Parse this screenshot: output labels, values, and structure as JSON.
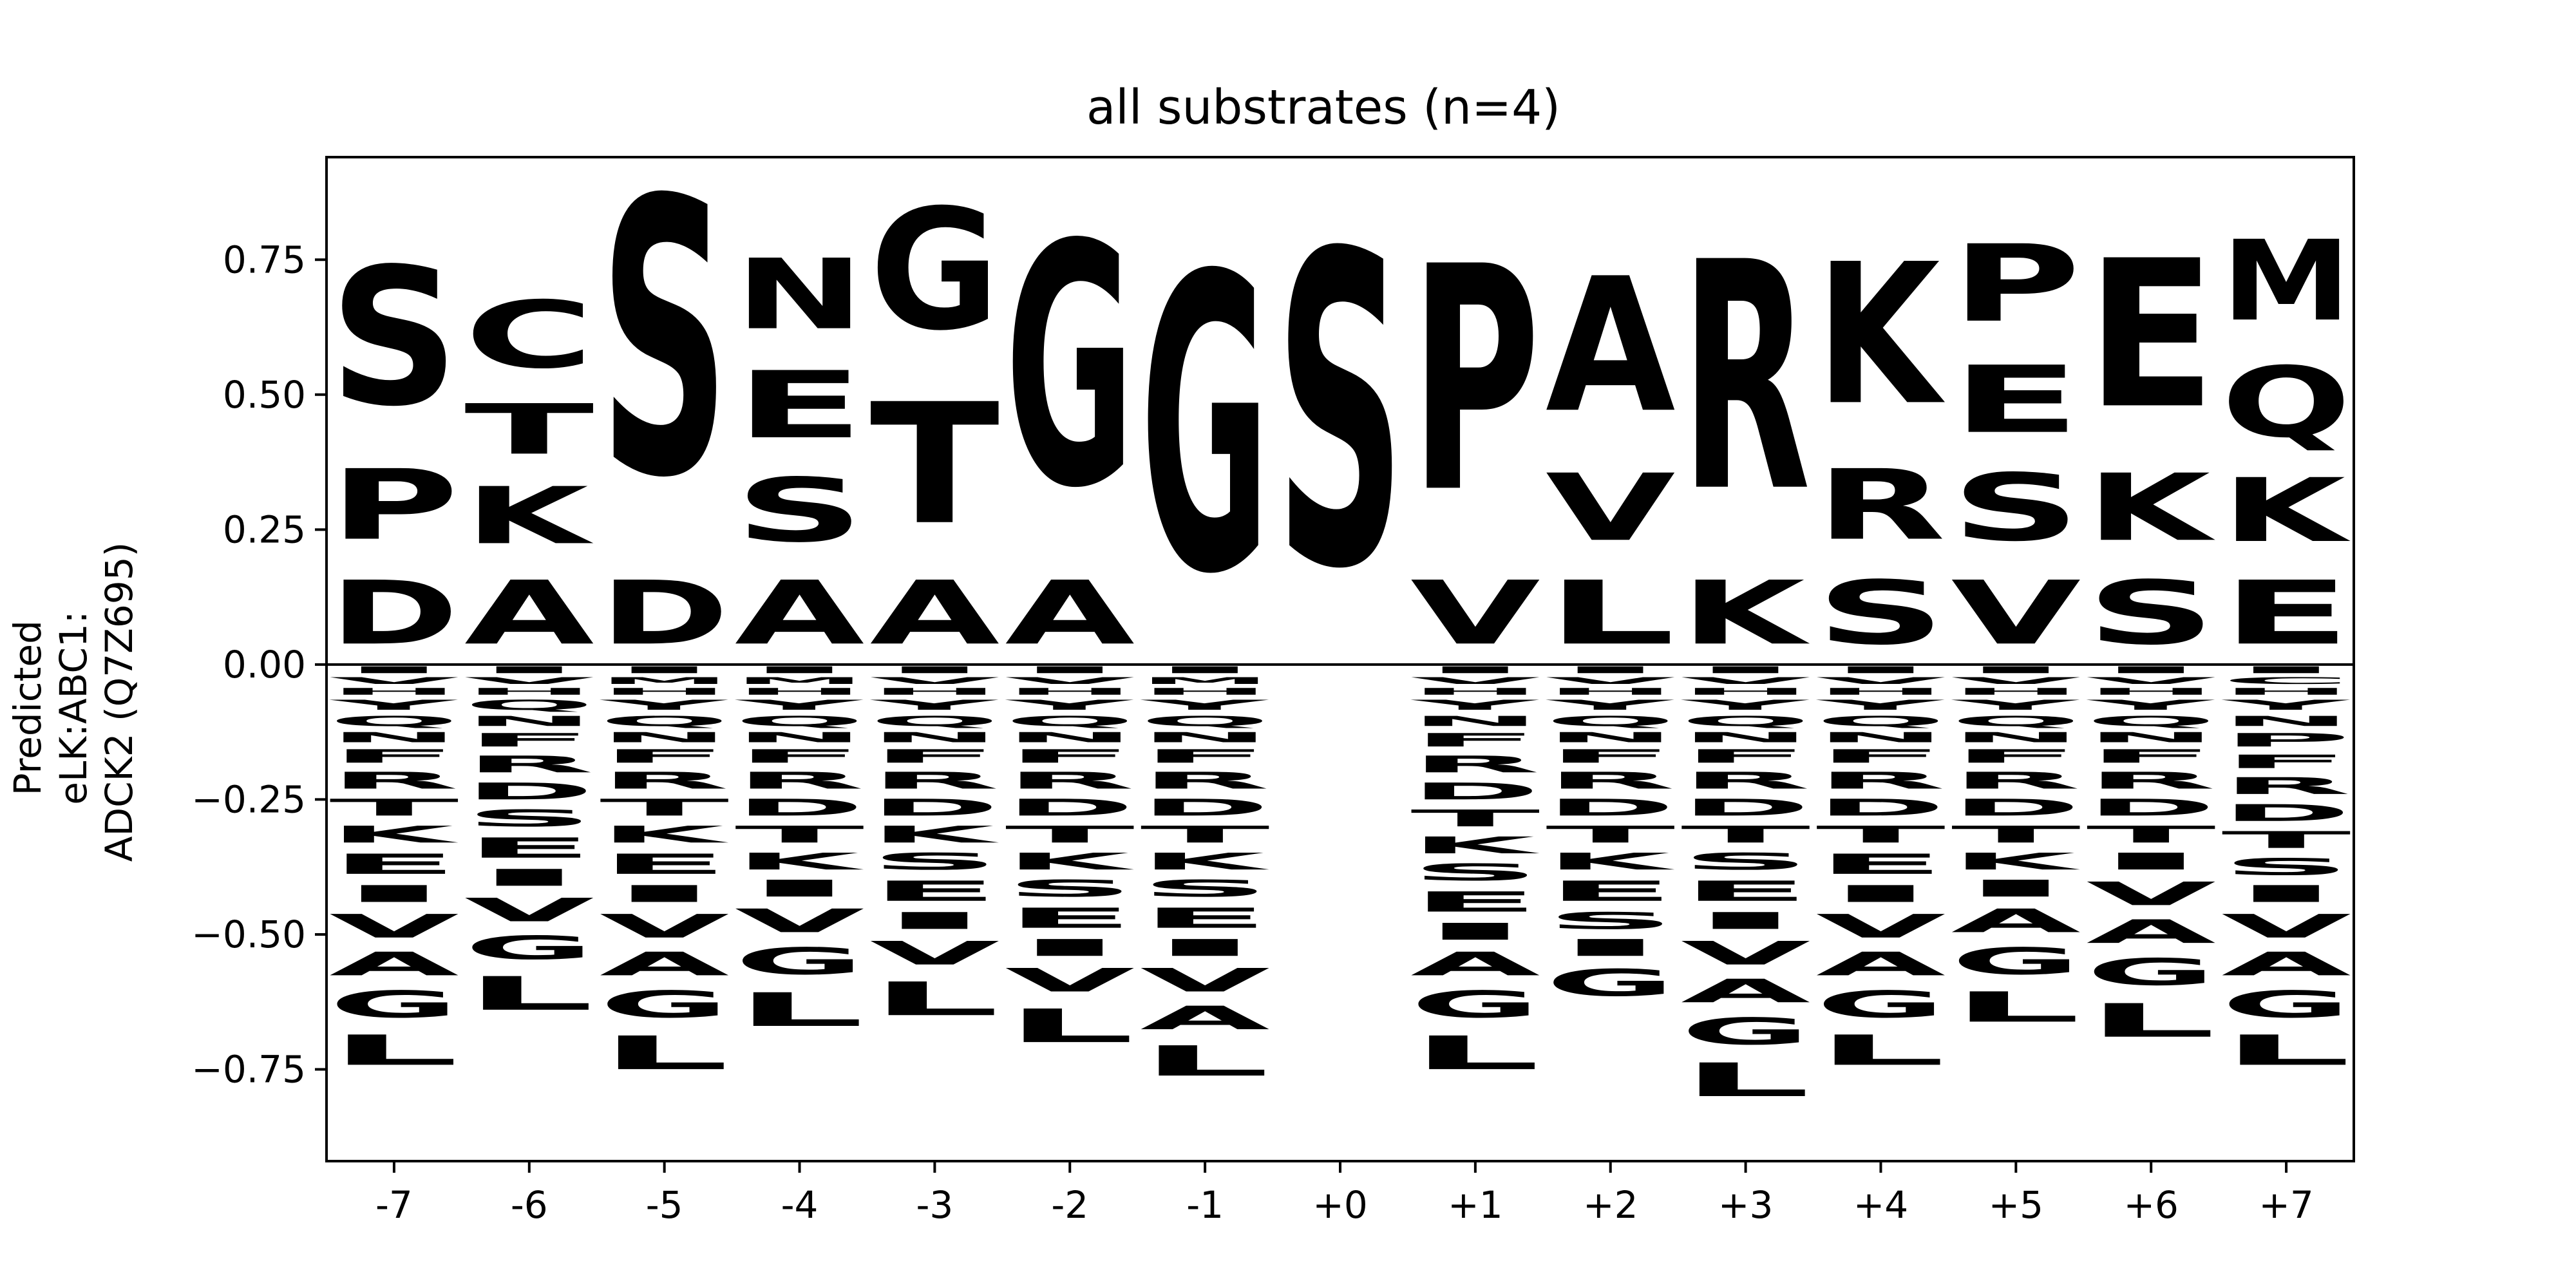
{
  "colors": {
    "green": "#22d22a",
    "black": "#000000",
    "blue": "#0a1fc4",
    "red": "#d5111a",
    "magenta": "#d62bc6"
  },
  "chart_data": {
    "type": "sequence-logo",
    "title": "all substrates (n=4)",
    "ylabel_lines": [
      "Predicted",
      "eLK:ABC1:",
      "ADCK2 (Q7Z695)"
    ],
    "xlabel": "",
    "ylim": [
      -0.92,
      0.94
    ],
    "yticks": [
      {
        "value": 0.75,
        "label": "0.75"
      },
      {
        "value": 0.5,
        "label": "0.50"
      },
      {
        "value": 0.25,
        "label": "0.25"
      },
      {
        "value": 0.0,
        "label": "0.00"
      },
      {
        "value": -0.25,
        "label": "−0.25"
      },
      {
        "value": -0.5,
        "label": "−0.50"
      },
      {
        "value": -0.75,
        "label": "−0.75"
      }
    ],
    "positions": [
      "-7",
      "-6",
      "-5",
      "-4",
      "-3",
      "-2",
      "-1",
      "+0",
      "+1",
      "+2",
      "+3",
      "+4",
      "+5",
      "+6",
      "+7"
    ],
    "letter_colors": {
      "S": "green",
      "T": "green",
      "G": "green",
      "C": "green",
      "Y": "green",
      "P": "black",
      "A": "black",
      "V": "black",
      "L": "black",
      "I": "black",
      "M": "black",
      "F": "black",
      "W": "black",
      "K": "blue",
      "R": "blue",
      "H": "blue",
      "D": "red",
      "E": "red",
      "N": "magenta",
      "Q": "magenta"
    },
    "positive": [
      [
        [
          "D",
          0.19
        ],
        [
          "P",
          0.21
        ],
        [
          "S",
          0.41
        ]
      ],
      [
        [
          "A",
          0.19
        ],
        [
          "K",
          0.17
        ],
        [
          "T",
          0.15
        ],
        [
          "C",
          0.2
        ]
      ],
      [
        [
          "D",
          0.19
        ],
        [
          "S",
          0.82
        ]
      ],
      [
        [
          "A",
          0.19
        ],
        [
          "S",
          0.19
        ],
        [
          "E",
          0.2
        ],
        [
          "N",
          0.21
        ]
      ],
      [
        [
          "A",
          0.19
        ],
        [
          "T",
          0.36
        ],
        [
          "G",
          0.36
        ]
      ],
      [
        [
          "A",
          0.19
        ],
        [
          "G",
          0.72
        ]
      ],
      [
        [
          "G",
          0.88
        ]
      ],
      [
        [
          "S",
          0.93
        ]
      ],
      [
        [
          "V",
          0.19
        ],
        [
          "P",
          0.67
        ]
      ],
      [
        [
          "L",
          0.19
        ],
        [
          "V",
          0.2
        ],
        [
          "A",
          0.4
        ]
      ],
      [
        [
          "K",
          0.19
        ],
        [
          "R",
          0.68
        ]
      ],
      [
        [
          "S",
          0.19
        ],
        [
          "R",
          0.21
        ],
        [
          "K",
          0.42
        ]
      ],
      [
        [
          "V",
          0.19
        ],
        [
          "S",
          0.2
        ],
        [
          "E",
          0.2
        ],
        [
          "P",
          0.23
        ]
      ],
      [
        [
          "S",
          0.19
        ],
        [
          "K",
          0.2
        ],
        [
          "E",
          0.44
        ]
      ],
      [
        [
          "E",
          0.19
        ],
        [
          "K",
          0.19
        ],
        [
          "Q",
          0.21
        ],
        [
          "M",
          0.24
        ]
      ]
    ],
    "negative": [
      [
        [
          "I",
          0.02
        ],
        [
          "V",
          0.02
        ],
        [
          "H",
          0.02
        ],
        [
          "Y",
          0.03
        ],
        [
          "Q",
          0.03
        ],
        [
          "N",
          0.03
        ],
        [
          "F",
          0.04
        ],
        [
          "R",
          0.05
        ],
        [
          "T",
          0.05
        ],
        [
          "K",
          0.05
        ],
        [
          "E",
          0.06
        ],
        [
          "I",
          0.05
        ],
        [
          "V",
          0.07
        ],
        [
          "A",
          0.07
        ],
        [
          "G",
          0.08
        ],
        [
          "L",
          0.09
        ]
      ],
      [
        [
          "I",
          0.02
        ],
        [
          "V",
          0.02
        ],
        [
          "H",
          0.02
        ],
        [
          "Q",
          0.03
        ],
        [
          "N",
          0.03
        ],
        [
          "F",
          0.04
        ],
        [
          "R",
          0.05
        ],
        [
          "D",
          0.05
        ],
        [
          "S",
          0.05
        ],
        [
          "E",
          0.06
        ],
        [
          "I",
          0.05
        ],
        [
          "V",
          0.07
        ],
        [
          "G",
          0.07
        ],
        [
          "L",
          0.1
        ]
      ],
      [
        [
          "I",
          0.02
        ],
        [
          "M",
          0.02
        ],
        [
          "H",
          0.02
        ],
        [
          "Y",
          0.03
        ],
        [
          "Q",
          0.03
        ],
        [
          "N",
          0.03
        ],
        [
          "F",
          0.04
        ],
        [
          "R",
          0.05
        ],
        [
          "T",
          0.05
        ],
        [
          "K",
          0.05
        ],
        [
          "E",
          0.06
        ],
        [
          "I",
          0.05
        ],
        [
          "V",
          0.07
        ],
        [
          "A",
          0.07
        ],
        [
          "G",
          0.08
        ],
        [
          "L",
          0.1
        ]
      ],
      [
        [
          "I",
          0.02
        ],
        [
          "M",
          0.02
        ],
        [
          "H",
          0.02
        ],
        [
          "Y",
          0.03
        ],
        [
          "Q",
          0.03
        ],
        [
          "N",
          0.03
        ],
        [
          "F",
          0.04
        ],
        [
          "R",
          0.05
        ],
        [
          "D",
          0.05
        ],
        [
          "T",
          0.05
        ],
        [
          "K",
          0.05
        ],
        [
          "I",
          0.05
        ],
        [
          "V",
          0.07
        ],
        [
          "G",
          0.08
        ],
        [
          "L",
          0.1
        ]
      ],
      [
        [
          "I",
          0.02
        ],
        [
          "V",
          0.02
        ],
        [
          "H",
          0.02
        ],
        [
          "Y",
          0.03
        ],
        [
          "Q",
          0.03
        ],
        [
          "N",
          0.03
        ],
        [
          "F",
          0.04
        ],
        [
          "R",
          0.05
        ],
        [
          "D",
          0.05
        ],
        [
          "K",
          0.05
        ],
        [
          "S",
          0.05
        ],
        [
          "E",
          0.06
        ],
        [
          "I",
          0.05
        ],
        [
          "V",
          0.07
        ],
        [
          "L",
          0.1
        ]
      ],
      [
        [
          "I",
          0.02
        ],
        [
          "V",
          0.02
        ],
        [
          "H",
          0.02
        ],
        [
          "Y",
          0.03
        ],
        [
          "Q",
          0.03
        ],
        [
          "N",
          0.03
        ],
        [
          "F",
          0.04
        ],
        [
          "R",
          0.05
        ],
        [
          "D",
          0.05
        ],
        [
          "T",
          0.05
        ],
        [
          "K",
          0.05
        ],
        [
          "S",
          0.05
        ],
        [
          "E",
          0.06
        ],
        [
          "I",
          0.05
        ],
        [
          "V",
          0.07
        ],
        [
          "L",
          0.1
        ]
      ],
      [
        [
          "I",
          0.02
        ],
        [
          "M",
          0.02
        ],
        [
          "H",
          0.02
        ],
        [
          "Y",
          0.03
        ],
        [
          "Q",
          0.03
        ],
        [
          "N",
          0.03
        ],
        [
          "F",
          0.04
        ],
        [
          "R",
          0.05
        ],
        [
          "D",
          0.05
        ],
        [
          "T",
          0.05
        ],
        [
          "K",
          0.05
        ],
        [
          "S",
          0.05
        ],
        [
          "E",
          0.06
        ],
        [
          "I",
          0.05
        ],
        [
          "V",
          0.07
        ],
        [
          "A",
          0.07
        ],
        [
          "L",
          0.09
        ]
      ],
      [],
      [
        [
          "I",
          0.02
        ],
        [
          "V",
          0.02
        ],
        [
          "H",
          0.02
        ],
        [
          "Y",
          0.03
        ],
        [
          "N",
          0.03
        ],
        [
          "F",
          0.04
        ],
        [
          "R",
          0.05
        ],
        [
          "D",
          0.05
        ],
        [
          "T",
          0.05
        ],
        [
          "K",
          0.05
        ],
        [
          "S",
          0.05
        ],
        [
          "E",
          0.06
        ],
        [
          "I",
          0.05
        ],
        [
          "A",
          0.07
        ],
        [
          "G",
          0.08
        ],
        [
          "L",
          0.1
        ]
      ],
      [
        [
          "I",
          0.02
        ],
        [
          "V",
          0.02
        ],
        [
          "H",
          0.02
        ],
        [
          "Y",
          0.03
        ],
        [
          "Q",
          0.03
        ],
        [
          "N",
          0.03
        ],
        [
          "F",
          0.04
        ],
        [
          "R",
          0.05
        ],
        [
          "D",
          0.05
        ],
        [
          "T",
          0.05
        ],
        [
          "K",
          0.05
        ],
        [
          "E",
          0.06
        ],
        [
          "S",
          0.05
        ],
        [
          "I",
          0.05
        ],
        [
          "G",
          0.08
        ]
      ],
      [
        [
          "I",
          0.02
        ],
        [
          "V",
          0.02
        ],
        [
          "H",
          0.02
        ],
        [
          "Y",
          0.03
        ],
        [
          "Q",
          0.03
        ],
        [
          "N",
          0.03
        ],
        [
          "F",
          0.04
        ],
        [
          "R",
          0.05
        ],
        [
          "D",
          0.05
        ],
        [
          "T",
          0.05
        ],
        [
          "S",
          0.05
        ],
        [
          "E",
          0.06
        ],
        [
          "I",
          0.05
        ],
        [
          "V",
          0.07
        ],
        [
          "A",
          0.07
        ],
        [
          "G",
          0.08
        ],
        [
          "L",
          0.1
        ]
      ],
      [
        [
          "I",
          0.02
        ],
        [
          "V",
          0.02
        ],
        [
          "H",
          0.02
        ],
        [
          "Y",
          0.03
        ],
        [
          "Q",
          0.03
        ],
        [
          "N",
          0.03
        ],
        [
          "F",
          0.04
        ],
        [
          "R",
          0.05
        ],
        [
          "D",
          0.05
        ],
        [
          "T",
          0.05
        ],
        [
          "E",
          0.06
        ],
        [
          "I",
          0.05
        ],
        [
          "V",
          0.07
        ],
        [
          "A",
          0.07
        ],
        [
          "G",
          0.08
        ],
        [
          "L",
          0.09
        ]
      ],
      [
        [
          "I",
          0.02
        ],
        [
          "V",
          0.02
        ],
        [
          "H",
          0.02
        ],
        [
          "Y",
          0.03
        ],
        [
          "Q",
          0.03
        ],
        [
          "N",
          0.03
        ],
        [
          "F",
          0.04
        ],
        [
          "R",
          0.05
        ],
        [
          "D",
          0.05
        ],
        [
          "T",
          0.05
        ],
        [
          "K",
          0.05
        ],
        [
          "I",
          0.05
        ],
        [
          "A",
          0.07
        ],
        [
          "G",
          0.08
        ],
        [
          "L",
          0.09
        ]
      ],
      [
        [
          "I",
          0.02
        ],
        [
          "V",
          0.02
        ],
        [
          "H",
          0.02
        ],
        [
          "Y",
          0.03
        ],
        [
          "Q",
          0.03
        ],
        [
          "N",
          0.03
        ],
        [
          "F",
          0.04
        ],
        [
          "R",
          0.05
        ],
        [
          "D",
          0.05
        ],
        [
          "T",
          0.05
        ],
        [
          "I",
          0.05
        ],
        [
          "V",
          0.07
        ],
        [
          "A",
          0.07
        ],
        [
          "G",
          0.08
        ],
        [
          "L",
          0.1
        ]
      ],
      [
        [
          "I",
          0.02
        ],
        [
          "C",
          0.02
        ],
        [
          "H",
          0.02
        ],
        [
          "Y",
          0.03
        ],
        [
          "N",
          0.03
        ],
        [
          "P",
          0.04
        ],
        [
          "F",
          0.04
        ],
        [
          "R",
          0.05
        ],
        [
          "D",
          0.05
        ],
        [
          "T",
          0.05
        ],
        [
          "S",
          0.05
        ],
        [
          "I",
          0.05
        ],
        [
          "V",
          0.07
        ],
        [
          "A",
          0.07
        ],
        [
          "G",
          0.08
        ],
        [
          "L",
          0.09
        ]
      ]
    ]
  }
}
